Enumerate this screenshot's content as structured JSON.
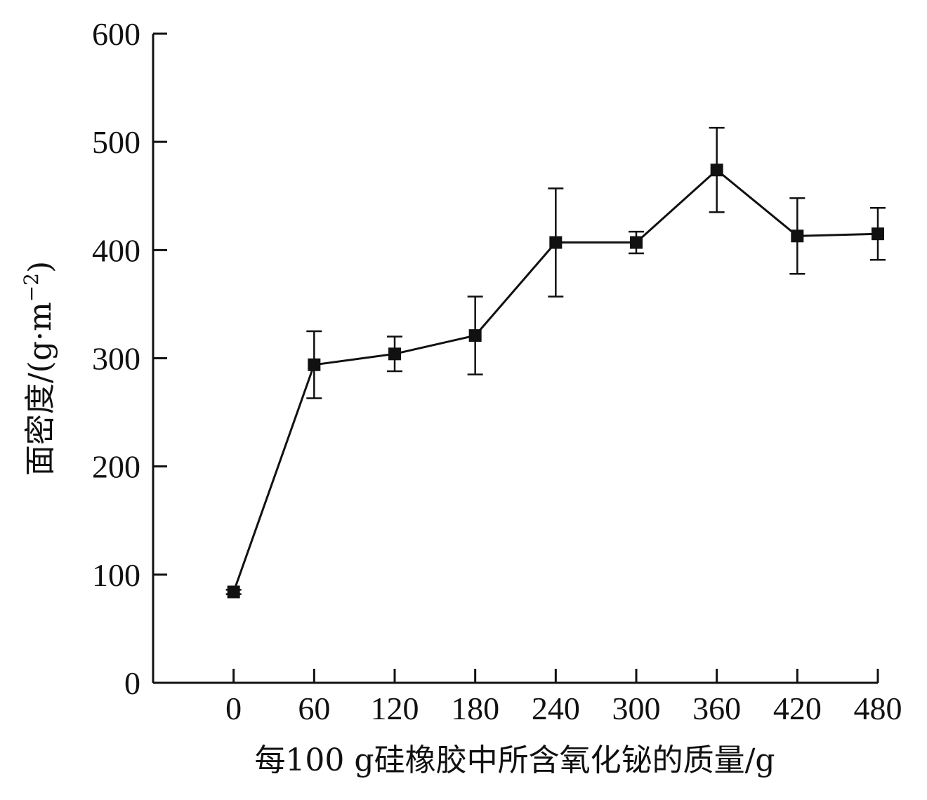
{
  "chart_data": {
    "type": "line",
    "title": "",
    "xlabel": "每100 g硅橡胶中所含氧化铋的质量/g",
    "ylabel_main": "面密度/(g·m",
    "ylabel_sup": "−2",
    "ylabel_close": ")",
    "xlim": [
      -60,
      480
    ],
    "ylim": [
      0,
      600
    ],
    "x_ticks": [
      0,
      60,
      120,
      180,
      240,
      300,
      360,
      420,
      480
    ],
    "y_ticks": [
      0,
      100,
      200,
      300,
      400,
      500,
      600
    ],
    "grid": false,
    "legend": "none",
    "series": [
      {
        "x": [
          0,
          60,
          120,
          180,
          240,
          300,
          360,
          420,
          480
        ],
        "y": [
          84,
          294,
          304,
          321,
          407,
          407,
          474,
          413,
          415
        ],
        "error": [
          2,
          31,
          16,
          36,
          50,
          10,
          39,
          35,
          24
        ]
      }
    ],
    "colors": {
      "line": "#111111",
      "marker": "#111111"
    }
  }
}
